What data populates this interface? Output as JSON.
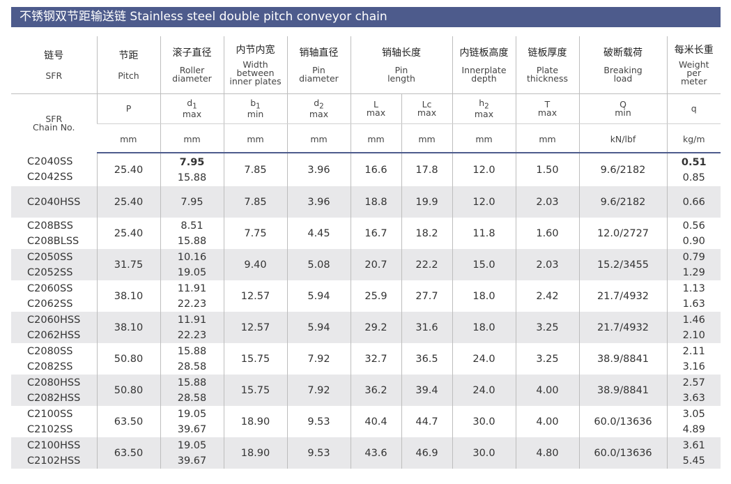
{
  "title": "不锈钢双节距输送链   Stainless steel double pitch conveyor chain",
  "header": {
    "sfr_cn": "链号",
    "sfr_en": "SFR",
    "sfr_chain_no_line1": "SFR",
    "sfr_chain_no_line2": "Chain No.",
    "columns": [
      {
        "cn": "节距",
        "en1": "Pitch",
        "en2": "",
        "en3": "",
        "sym": "P",
        "sub": "",
        "limit": "",
        "unit": "mm"
      },
      {
        "cn": "滚子直径",
        "en1": "Roller",
        "en2": "diameter",
        "en3": "",
        "sym": "d",
        "sub": "1",
        "limit": "max",
        "unit": "mm"
      },
      {
        "cn": "内节内宽",
        "en1": "Width",
        "en2": "between",
        "en3": "inner plates",
        "sym": "b",
        "sub": "1",
        "limit": "min",
        "unit": "mm"
      },
      {
        "cn": "销轴直径",
        "en1": "Pin",
        "en2": "diameter",
        "en3": "",
        "sym": "d",
        "sub": "2",
        "limit": "max",
        "unit": "mm"
      },
      {
        "cn": "销轴长度",
        "en1": "Pin",
        "en2": "length",
        "en3": ""
      },
      {
        "cn": "内链板高度",
        "en1": "Innerplate",
        "en2": "depth",
        "en3": "",
        "sym": "h",
        "sub": "2",
        "limit": "max",
        "unit": "mm"
      },
      {
        "cn": "链板厚度",
        "en1": "Plate",
        "en2": "thickness",
        "en3": "",
        "sym": "T",
        "sub": "",
        "limit": "max",
        "unit": "mm"
      },
      {
        "cn": "破断载荷",
        "en1": "Breaking",
        "en2": "load",
        "en3": "",
        "sym": "Q",
        "sub": "",
        "limit": "min",
        "unit": "kN/lbf"
      },
      {
        "cn": "每米长重",
        "en1": "Weight",
        "en2": "per",
        "en3": "meter",
        "sym": "q",
        "sub": "",
        "limit": "",
        "unit": "kg/m"
      }
    ],
    "pin_L": {
      "sym": "L",
      "limit": "max",
      "unit": "mm"
    },
    "pin_Lc": {
      "sym": "Lc",
      "limit": "max",
      "unit": "mm"
    }
  },
  "rows": [
    {
      "chain": [
        "C2040SS",
        "C2042SS"
      ],
      "pitch": "25.40",
      "d1": [
        "7.95",
        "15.88"
      ],
      "b1": "7.85",
      "d2": "3.96",
      "L": "16.6",
      "Lc": "17.8",
      "h2": "12.0",
      "T": "1.50",
      "Q": "9.6/2182",
      "q": [
        "0.51",
        "0.85"
      ]
    },
    {
      "chain": [
        "C2040HSS"
      ],
      "pitch": "25.40",
      "d1": [
        "7.95"
      ],
      "b1": "7.85",
      "d2": "3.96",
      "L": "18.8",
      "Lc": "19.9",
      "h2": "12.0",
      "T": "2.03",
      "Q": "9.6/2182",
      "q": [
        "0.66"
      ]
    },
    {
      "chain": [
        "C208BSS",
        "C208BLSS"
      ],
      "pitch": "25.40",
      "d1": [
        "8.51",
        "15.88"
      ],
      "b1": "7.75",
      "d2": "4.45",
      "L": "16.7",
      "Lc": "18.2",
      "h2": "11.8",
      "T": "1.60",
      "Q": "12.0/2727",
      "q": [
        "0.56",
        "0.90"
      ]
    },
    {
      "chain": [
        "C2050SS",
        "C2052SS"
      ],
      "pitch": "31.75",
      "d1": [
        "10.16",
        "19.05"
      ],
      "b1": "9.40",
      "d2": "5.08",
      "L": "20.7",
      "Lc": "22.2",
      "h2": "15.0",
      "T": "2.03",
      "Q": "15.2/3455",
      "q": [
        "0.79",
        "1.29"
      ]
    },
    {
      "chain": [
        "C2060SS",
        "C2062SS"
      ],
      "pitch": "38.10",
      "d1": [
        "11.91",
        "22.23"
      ],
      "b1": "12.57",
      "d2": "5.94",
      "L": "25.9",
      "Lc": "27.7",
      "h2": "18.0",
      "T": "2.42",
      "Q": "21.7/4932",
      "q": [
        "1.13",
        "1.63"
      ]
    },
    {
      "chain": [
        "C2060HSS",
        "C2062HSS"
      ],
      "pitch": "38.10",
      "d1": [
        "11.91",
        "22.23"
      ],
      "b1": "12.57",
      "d2": "5.94",
      "L": "29.2",
      "Lc": "31.6",
      "h2": "18.0",
      "T": "3.25",
      "Q": "21.7/4932",
      "q": [
        "1.46",
        "2.10"
      ]
    },
    {
      "chain": [
        "C2080SS",
        "C2082SS"
      ],
      "pitch": "50.80",
      "d1": [
        "15.88",
        "28.58"
      ],
      "b1": "15.75",
      "d2": "7.92",
      "L": "32.7",
      "Lc": "36.5",
      "h2": "24.0",
      "T": "3.25",
      "Q": "38.9/8841",
      "q": [
        "2.11",
        "3.16"
      ]
    },
    {
      "chain": [
        "C2080HSS",
        "C2082HSS"
      ],
      "pitch": "50.80",
      "d1": [
        "15.88",
        "28.58"
      ],
      "b1": "15.75",
      "d2": "7.92",
      "L": "36.2",
      "Lc": "39.4",
      "h2": "24.0",
      "T": "4.00",
      "Q": "38.9/8841",
      "q": [
        "2.57",
        "3.63"
      ]
    },
    {
      "chain": [
        "C2100SS",
        "C2102SS"
      ],
      "pitch": "63.50",
      "d1": [
        "19.05",
        "39.67"
      ],
      "b1": "18.90",
      "d2": "9.53",
      "L": "40.4",
      "Lc": "44.7",
      "h2": "30.0",
      "T": "4.00",
      "Q": "60.0/13636",
      "q": [
        "3.05",
        "4.89"
      ]
    },
    {
      "chain": [
        "C2100HSS",
        "C2102HSS"
      ],
      "pitch": "63.50",
      "d1": [
        "19.05",
        "39.67"
      ],
      "b1": "18.90",
      "d2": "9.53",
      "L": "43.6",
      "Lc": "46.9",
      "h2": "30.0",
      "T": "4.80",
      "Q": "60.0/13636",
      "q": [
        "3.61",
        "5.45"
      ]
    }
  ]
}
